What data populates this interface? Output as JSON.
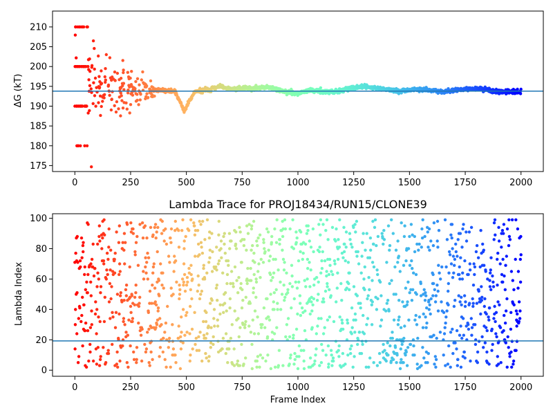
{
  "chart_data": [
    {
      "type": "scatter",
      "title": "",
      "xlabel": "",
      "ylabel": "ΔG (kT)",
      "xlim": [
        -100,
        2100
      ],
      "ylim": [
        173.5,
        214
      ],
      "xticks": [
        "0",
        "250",
        "500",
        "750",
        "1000",
        "1250",
        "1500",
        "1750",
        "2000"
      ],
      "yticks": [
        "175",
        "180",
        "185",
        "190",
        "195",
        "200",
        "205",
        "210"
      ],
      "colormap": "rainbow (red at frame 0 to violet at frame 2000)",
      "reference_line": 193.8,
      "reference_line_color": "#1f77b4",
      "trend_points": [
        {
          "x": 0,
          "y": 195.0
        },
        {
          "x": 125,
          "y": 195.5
        },
        {
          "x": 200,
          "y": 194.5
        },
        {
          "x": 300,
          "y": 194.2
        },
        {
          "x": 400,
          "y": 194.0
        },
        {
          "x": 450,
          "y": 193.6
        },
        {
          "x": 480,
          "y": 190.0
        },
        {
          "x": 490,
          "y": 188.6
        },
        {
          "x": 510,
          "y": 191.0
        },
        {
          "x": 540,
          "y": 193.8
        },
        {
          "x": 600,
          "y": 194.1
        },
        {
          "x": 650,
          "y": 195.1
        },
        {
          "x": 700,
          "y": 194.3
        },
        {
          "x": 800,
          "y": 194.5
        },
        {
          "x": 870,
          "y": 194.8
        },
        {
          "x": 950,
          "y": 193.6
        },
        {
          "x": 1000,
          "y": 193.2
        },
        {
          "x": 1050,
          "y": 194.0
        },
        {
          "x": 1150,
          "y": 193.5
        },
        {
          "x": 1250,
          "y": 194.5
        },
        {
          "x": 1300,
          "y": 195.0
        },
        {
          "x": 1350,
          "y": 194.5
        },
        {
          "x": 1450,
          "y": 193.9
        },
        {
          "x": 1550,
          "y": 194.3
        },
        {
          "x": 1650,
          "y": 193.6
        },
        {
          "x": 1750,
          "y": 194.3
        },
        {
          "x": 1820,
          "y": 194.5
        },
        {
          "x": 1870,
          "y": 193.8
        },
        {
          "x": 1950,
          "y": 193.6
        },
        {
          "x": 2000,
          "y": 193.6
        }
      ],
      "discrete_levels_early": [
        210,
        200,
        190,
        180
      ]
    },
    {
      "type": "scatter",
      "title": "Lambda Trace for PROJ18434/RUN15/CLONE39",
      "xlabel": "Frame Index",
      "ylabel": "Lambda Index",
      "xlim": [
        -100,
        2100
      ],
      "ylim": [
        -4,
        103
      ],
      "xticks": [
        "0",
        "250",
        "500",
        "750",
        "1000",
        "1250",
        "1500",
        "1750",
        "2000"
      ],
      "yticks": [
        "0",
        "20",
        "40",
        "60",
        "80",
        "100"
      ],
      "colormap": "rainbow (red at frame 0 to violet at frame 2000)",
      "reference_line": 19.3,
      "reference_line_color": "#1f77b4",
      "lambda_range": [
        1,
        99
      ]
    }
  ]
}
